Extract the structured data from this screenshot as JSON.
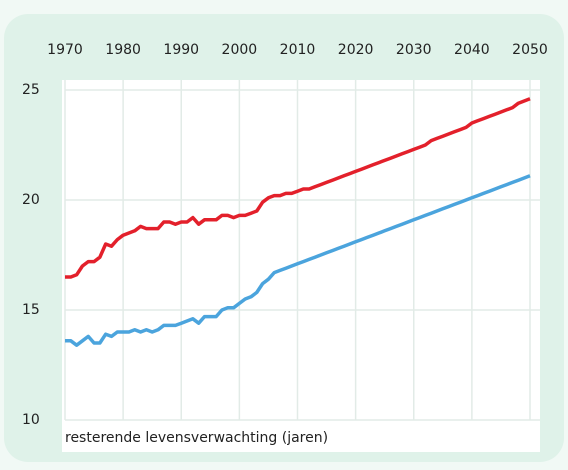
{
  "chart_data": {
    "type": "line",
    "x_label": "resterende levensverwachting (jaren)",
    "x": [
      1970,
      1971,
      1972,
      1973,
      1974,
      1975,
      1976,
      1977,
      1978,
      1979,
      1980,
      1981,
      1982,
      1983,
      1984,
      1985,
      1986,
      1987,
      1988,
      1989,
      1990,
      1991,
      1992,
      1993,
      1994,
      1995,
      1996,
      1997,
      1998,
      1999,
      2000,
      2001,
      2002,
      2003,
      2004,
      2005,
      2006,
      2007,
      2008,
      2009,
      2010,
      2011,
      2012,
      2013,
      2014,
      2015,
      2016,
      2017,
      2018,
      2019,
      2020,
      2021,
      2022,
      2023,
      2024,
      2025,
      2026,
      2027,
      2028,
      2029,
      2030,
      2031,
      2032,
      2033,
      2034,
      2035,
      2036,
      2037,
      2038,
      2039,
      2040,
      2041,
      2042,
      2043,
      2044,
      2045,
      2046,
      2047,
      2048,
      2049,
      2050
    ],
    "series": [
      {
        "color": "#e3202b",
        "values": [
          16.5,
          16.5,
          16.6,
          17.0,
          17.2,
          17.2,
          17.4,
          18.0,
          17.9,
          18.2,
          18.4,
          18.5,
          18.6,
          18.8,
          18.7,
          18.7,
          18.7,
          19.0,
          19.0,
          18.9,
          19.0,
          19.0,
          19.2,
          18.9,
          19.1,
          19.1,
          19.1,
          19.3,
          19.3,
          19.2,
          19.3,
          19.3,
          19.4,
          19.5,
          19.9,
          20.1,
          20.2,
          20.2,
          20.3,
          20.3,
          20.4,
          20.5,
          20.5,
          20.6,
          20.7,
          20.8,
          20.9,
          21.0,
          21.1,
          21.2,
          21.3,
          21.4,
          21.5,
          21.6,
          21.7,
          21.8,
          21.9,
          22.0,
          22.1,
          22.2,
          22.3,
          22.4,
          22.5,
          22.7,
          22.8,
          22.9,
          23.0,
          23.1,
          23.2,
          23.3,
          23.5,
          23.6,
          23.7,
          23.8,
          23.9,
          24.0,
          24.1,
          24.2,
          24.4,
          24.5,
          24.6
        ]
      },
      {
        "color": "#4ba4dd",
        "values": [
          13.6,
          13.6,
          13.4,
          13.6,
          13.8,
          13.5,
          13.5,
          13.9,
          13.8,
          14.0,
          14.0,
          14.0,
          14.1,
          14.0,
          14.1,
          14.0,
          14.1,
          14.3,
          14.3,
          14.3,
          14.4,
          14.5,
          14.6,
          14.4,
          14.7,
          14.7,
          14.7,
          15.0,
          15.1,
          15.1,
          15.3,
          15.5,
          15.6,
          15.8,
          16.2,
          16.4,
          16.7,
          16.8,
          16.9,
          17.0,
          17.1,
          17.2,
          17.3,
          17.4,
          17.5,
          17.6,
          17.7,
          17.8,
          17.9,
          18.0,
          18.1,
          18.2,
          18.3,
          18.4,
          18.5,
          18.6,
          18.7,
          18.8,
          18.9,
          19.0,
          19.1,
          19.2,
          19.3,
          19.4,
          19.5,
          19.6,
          19.7,
          19.8,
          19.9,
          20.0,
          20.1,
          20.2,
          20.3,
          20.4,
          20.5,
          20.6,
          20.7,
          20.8,
          20.9,
          21.0,
          21.1
        ]
      }
    ],
    "xlim": [
      1970,
      2050
    ],
    "xticks": [
      1970,
      1980,
      1990,
      2000,
      2010,
      2020,
      2030,
      2040,
      2050
    ],
    "ylim": [
      10,
      25
    ],
    "yticks": [
      10,
      15,
      20,
      25
    ],
    "grid": true
  }
}
